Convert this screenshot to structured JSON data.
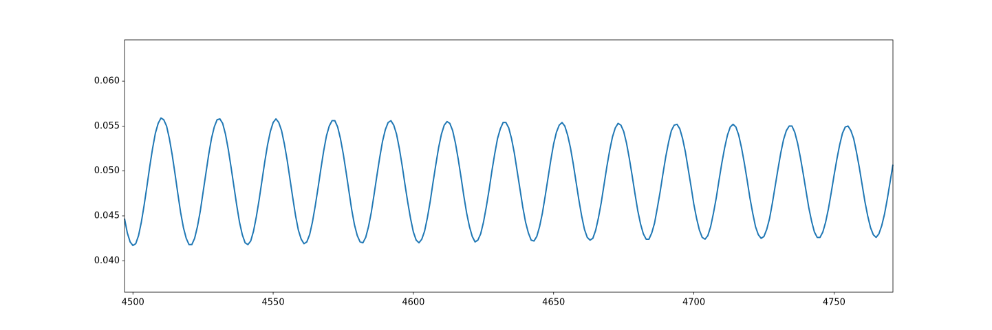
{
  "chart_data": {
    "type": "line",
    "x": [
      4497,
      4498,
      4499,
      4500,
      4501,
      4502,
      4503,
      4504,
      4505,
      4506,
      4507,
      4508,
      4509,
      4510,
      4511,
      4512,
      4513,
      4514,
      4515,
      4516,
      4517,
      4518,
      4519,
      4520,
      4521,
      4522,
      4523,
      4524,
      4525,
      4526,
      4527,
      4528,
      4529,
      4530,
      4531,
      4532,
      4533,
      4534,
      4535,
      4536,
      4537,
      4538,
      4539,
      4540,
      4541,
      4542,
      4543,
      4544,
      4545,
      4546,
      4547,
      4548,
      4549,
      4550,
      4551,
      4552,
      4553,
      4554,
      4555,
      4556,
      4557,
      4558,
      4559,
      4560,
      4561,
      4562,
      4563,
      4564,
      4565,
      4566,
      4567,
      4568,
      4569,
      4570,
      4571,
      4572,
      4573,
      4574,
      4575,
      4576,
      4577,
      4578,
      4579,
      4580,
      4581,
      4582,
      4583,
      4584,
      4585,
      4586,
      4587,
      4588,
      4589,
      4590,
      4591,
      4592,
      4593,
      4594,
      4595,
      4596,
      4597,
      4598,
      4599,
      4600,
      4601,
      4602,
      4603,
      4604,
      4605,
      4606,
      4607,
      4608,
      4609,
      4610,
      4611,
      4612,
      4613,
      4614,
      4615,
      4616,
      4617,
      4618,
      4619,
      4620,
      4621,
      4622,
      4623,
      4624,
      4625,
      4626,
      4627,
      4628,
      4629,
      4630,
      4631,
      4632,
      4633,
      4634,
      4635,
      4636,
      4637,
      4638,
      4639,
      4640,
      4641,
      4642,
      4643,
      4644,
      4645,
      4646,
      4647,
      4648,
      4649,
      4650,
      4651,
      4652,
      4653,
      4654,
      4655,
      4656,
      4657,
      4658,
      4659,
      4660,
      4661,
      4662,
      4663,
      4664,
      4665,
      4666,
      4667,
      4668,
      4669,
      4670,
      4671,
      4672,
      4673,
      4674,
      4675,
      4676,
      4677,
      4678,
      4679,
      4680,
      4681,
      4682,
      4683,
      4684,
      4685,
      4686,
      4687,
      4688,
      4689,
      4690,
      4691,
      4692,
      4693,
      4694,
      4695,
      4696,
      4697,
      4698,
      4699,
      4700,
      4701,
      4702,
      4703,
      4704,
      4705,
      4706,
      4707,
      4708,
      4709,
      4710,
      4711,
      4712,
      4713,
      4714,
      4715,
      4716,
      4717,
      4718,
      4719,
      4720,
      4721,
      4722,
      4723,
      4724,
      4725,
      4726,
      4727,
      4728,
      4729,
      4730,
      4731,
      4732,
      4733,
      4734,
      4735,
      4736,
      4737,
      4738,
      4739,
      4740,
      4741,
      4742,
      4743,
      4744,
      4745,
      4746,
      4747,
      4748,
      4749,
      4750,
      4751,
      4752,
      4753,
      4754,
      4755,
      4756,
      4757,
      4758,
      4759,
      4760,
      4761,
      4762,
      4763,
      4764,
      4765,
      4766,
      4767,
      4768,
      4769,
      4770,
      4771
    ],
    "values": [
      0.0447,
      0.0431,
      0.0421,
      0.0417,
      0.0419,
      0.0428,
      0.0443,
      0.0462,
      0.0483,
      0.0505,
      0.0525,
      0.0542,
      0.0553,
      0.0559,
      0.0557,
      0.055,
      0.0536,
      0.0518,
      0.0497,
      0.0475,
      0.0454,
      0.0437,
      0.0425,
      0.0418,
      0.0418,
      0.0425,
      0.0438,
      0.0455,
      0.0476,
      0.0497,
      0.0518,
      0.0536,
      0.0549,
      0.0557,
      0.0558,
      0.0553,
      0.0541,
      0.0524,
      0.0504,
      0.0483,
      0.0462,
      0.0443,
      0.0429,
      0.042,
      0.0418,
      0.0422,
      0.0433,
      0.0449,
      0.0468,
      0.0489,
      0.051,
      0.0529,
      0.0544,
      0.0554,
      0.0558,
      0.0554,
      0.0545,
      0.053,
      0.0512,
      0.0491,
      0.047,
      0.045,
      0.0434,
      0.0424,
      0.0419,
      0.0421,
      0.0429,
      0.0443,
      0.0461,
      0.0481,
      0.0502,
      0.0522,
      0.0539,
      0.055,
      0.0556,
      0.0556,
      0.0549,
      0.0536,
      0.0519,
      0.0499,
      0.0478,
      0.0457,
      0.044,
      0.0428,
      0.0421,
      0.042,
      0.0426,
      0.0438,
      0.0454,
      0.0474,
      0.0495,
      0.0515,
      0.0533,
      0.0546,
      0.0554,
      0.0556,
      0.0551,
      0.0541,
      0.0525,
      0.0506,
      0.0485,
      0.0465,
      0.0447,
      0.0432,
      0.0423,
      0.042,
      0.0424,
      0.0433,
      0.0448,
      0.0466,
      0.0487,
      0.0507,
      0.0526,
      0.0541,
      0.0551,
      0.0555,
      0.0553,
      0.0545,
      0.0531,
      0.0513,
      0.0493,
      0.0472,
      0.0453,
      0.0438,
      0.0427,
      0.0421,
      0.0423,
      0.043,
      0.0443,
      0.046,
      0.0479,
      0.05,
      0.0519,
      0.0536,
      0.0547,
      0.0554,
      0.0554,
      0.0548,
      0.0536,
      0.052,
      0.05,
      0.048,
      0.046,
      0.0443,
      0.0431,
      0.0423,
      0.0422,
      0.0427,
      0.0438,
      0.0453,
      0.0472,
      0.0492,
      0.0512,
      0.053,
      0.0543,
      0.0551,
      0.0554,
      0.055,
      0.054,
      0.0526,
      0.0508,
      0.0488,
      0.0468,
      0.045,
      0.0435,
      0.0426,
      0.0423,
      0.0425,
      0.0434,
      0.0448,
      0.0465,
      0.0485,
      0.0505,
      0.0523,
      0.0538,
      0.0548,
      0.0553,
      0.0551,
      0.0544,
      0.0531,
      0.0514,
      0.0495,
      0.0475,
      0.0456,
      0.0441,
      0.043,
      0.0424,
      0.0424,
      0.0431,
      0.0442,
      0.0459,
      0.0477,
      0.0497,
      0.0516,
      0.0532,
      0.0545,
      0.0551,
      0.0552,
      0.0547,
      0.0536,
      0.0521,
      0.0502,
      0.0483,
      0.0463,
      0.0447,
      0.0434,
      0.0426,
      0.0424,
      0.0428,
      0.0438,
      0.0453,
      0.047,
      0.049,
      0.0509,
      0.0526,
      0.054,
      0.0549,
      0.0552,
      0.0549,
      0.054,
      0.0526,
      0.0509,
      0.049,
      0.047,
      0.0453,
      0.0438,
      0.0429,
      0.0425,
      0.0427,
      0.0435,
      0.0447,
      0.0464,
      0.0483,
      0.0502,
      0.052,
      0.0535,
      0.0545,
      0.055,
      0.055,
      0.0543,
      0.0531,
      0.0515,
      0.0497,
      0.0478,
      0.0459,
      0.0444,
      0.0432,
      0.0426,
      0.0426,
      0.0432,
      0.0443,
      0.0458,
      0.0476,
      0.0495,
      0.0513,
      0.0529,
      0.0542,
      0.0549,
      0.055,
      0.0545,
      0.0536,
      0.0521,
      0.0504,
      0.0485,
      0.0466,
      0.045,
      0.0437,
      0.0429,
      0.0426,
      0.043,
      0.0439,
      0.0452,
      0.0469,
      0.0488,
      0.0507
    ],
    "color": "#1f77b4",
    "xlim": [
      4497,
      4771
    ],
    "xticks": [
      4500,
      4550,
      4600,
      4650,
      4700,
      4750
    ],
    "ylim": [
      0.0365,
      0.0646
    ],
    "yticks": [
      {
        "value": 0.04,
        "label": "0.040"
      },
      0.045,
      {
        "value": 0.05,
        "label": "0.050"
      },
      0.055,
      {
        "value": 0.06,
        "label": "0.060"
      }
    ],
    "grid": false
  }
}
